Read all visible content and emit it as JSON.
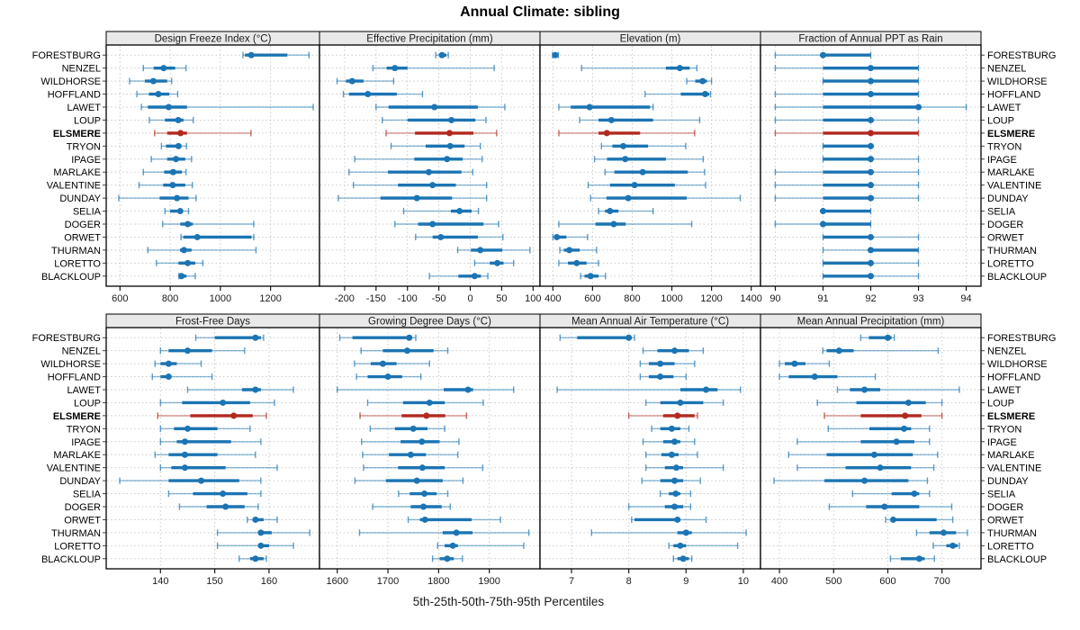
{
  "title": "Annual Climate: sibling",
  "caption": "5th-25th-50th-75th-95th Percentiles",
  "percentile_labels": [
    "5th",
    "25th",
    "50th",
    "75th",
    "95th"
  ],
  "stations": [
    "FORESTBURG",
    "NENZEL",
    "WILDHORSE",
    "HOFFLAND",
    "LAWET",
    "LOUP",
    "ELSMERE",
    "TRYON",
    "IPAGE",
    "MARLAKE",
    "VALENTINE",
    "DUNDAY",
    "SELIA",
    "DOGER",
    "ORWET",
    "THURMAN",
    "LORETTO",
    "BLACKLOUP"
  ],
  "highlight_station": "ELSMERE",
  "colors": {
    "series": "#1b74b3",
    "highlight": "#b3281f",
    "grid": "#c9c9c9",
    "panel_header_bg": "#e9e9e9",
    "border": "#000000",
    "text": "#1a1a1a"
  },
  "chart_data": [
    {
      "type": "segplot",
      "title": "Design Freeze Index (°C)",
      "row": 0,
      "xlim": [
        545,
        1395
      ],
      "ticks": [
        600,
        800,
        1000,
        1200
      ],
      "values": {
        "FORESTBURG": [
          1090,
          1098,
          1123,
          1267,
          1353
        ],
        "NENZEL": [
          693,
          734,
          774,
          820,
          863
        ],
        "WILDHORSE": [
          638,
          699,
          733,
          788,
          806
        ],
        "HOFFLAND": [
          667,
          715,
          753,
          796,
          830
        ],
        "LAWET": [
          685,
          711,
          794,
          867,
          1370
        ],
        "LOUP": [
          717,
          779,
          832,
          853,
          892
        ],
        "ELSMERE": [
          738,
          788,
          841,
          867,
          1122
        ],
        "TRYON": [
          765,
          783,
          833,
          845,
          865
        ],
        "IPAGE": [
          725,
          788,
          823,
          860,
          885
        ],
        "MARLAKE": [
          693,
          776,
          812,
          847,
          863
        ],
        "VALENTINE": [
          676,
          772,
          810,
          860,
          888
        ],
        "DUNDAY": [
          595,
          758,
          827,
          873,
          903
        ],
        "SELIA": [
          779,
          800,
          840,
          850,
          873
        ],
        "DOGER": [
          770,
          840,
          870,
          890,
          1133
        ],
        "ORWET": [
          843,
          852,
          908,
          1124,
          1133
        ],
        "THURMAN": [
          711,
          839,
          855,
          885,
          1142
        ],
        "LORETTO": [
          745,
          833,
          870,
          900,
          930
        ],
        "BLACKLOUP": [
          835,
          838,
          845,
          865,
          900
        ]
      }
    },
    {
      "type": "segplot",
      "title": "Effective Precipitation (mm)",
      "row": 0,
      "xlim": [
        -240,
        111
      ],
      "ticks": [
        -200,
        -150,
        -100,
        -50,
        0,
        50,
        100
      ],
      "values": {
        "FORESTBURG": [
          -55,
          -50,
          -45,
          -38,
          -35
        ],
        "NENZEL": [
          -155,
          -133,
          -120,
          -100,
          38
        ],
        "WILDHORSE": [
          -212,
          -198,
          -188,
          -170,
          -122
        ],
        "HOFFLAND": [
          -202,
          -193,
          -163,
          -117,
          -76
        ],
        "LAWET": [
          -150,
          -130,
          -57,
          12,
          55
        ],
        "LOUP": [
          -140,
          -100,
          -30,
          8,
          25
        ],
        "ELSMERE": [
          -134,
          -88,
          -33,
          5,
          42
        ],
        "TRYON": [
          -126,
          -71,
          -32,
          -9,
          16
        ],
        "IPAGE": [
          -184,
          -89,
          -37,
          -12,
          19
        ],
        "MARLAKE": [
          -193,
          -131,
          -66,
          -14,
          4
        ],
        "VALENTINE": [
          -186,
          -115,
          -60,
          -23,
          26
        ],
        "DUNDAY": [
          -210,
          -143,
          -85,
          -29,
          26
        ],
        "SELIA": [
          -106,
          -31,
          -17,
          2,
          13
        ],
        "DOGER": [
          -120,
          -83,
          -60,
          21,
          45
        ],
        "ORWET": [
          -87,
          -60,
          -47,
          12,
          52
        ],
        "THURMAN": [
          -20,
          1,
          16,
          51,
          95
        ],
        "LORETTO": [
          7,
          31,
          43,
          53,
          69
        ],
        "BLACKLOUP": [
          -65,
          -19,
          7,
          17,
          28
        ]
      }
    },
    {
      "type": "segplot",
      "title": "Elevation (m)",
      "row": 0,
      "xlim": [
        335,
        1447
      ],
      "ticks": [
        400,
        600,
        800,
        1000,
        1200,
        1400
      ],
      "values": {
        "FORESTBURG": [
          398,
          404,
          412,
          420,
          428
        ],
        "NENZEL": [
          545,
          970,
          1040,
          1090,
          1126
        ],
        "WILDHORSE": [
          1075,
          1118,
          1155,
          1177,
          1200
        ],
        "HOFFLAND": [
          865,
          1045,
          1168,
          1188,
          1195
        ],
        "LAWET": [
          430,
          490,
          585,
          890,
          905
        ],
        "LOUP": [
          535,
          630,
          695,
          905,
          1140
        ],
        "ELSMERE": [
          430,
          630,
          672,
          840,
          1115
        ],
        "TRYON": [
          645,
          700,
          755,
          880,
          1070
        ],
        "IPAGE": [
          610,
          673,
          765,
          970,
          1158
        ],
        "MARLAKE": [
          663,
          710,
          853,
          1080,
          1165
        ],
        "VALENTINE": [
          578,
          688,
          812,
          1015,
          1170
        ],
        "DUNDAY": [
          590,
          670,
          780,
          1075,
          1345
        ],
        "SELIA": [
          630,
          663,
          688,
          730,
          905
        ],
        "DOGER": [
          430,
          615,
          707,
          767,
          1100
        ],
        "ORWET": [
          400,
          406,
          420,
          468,
          575
        ],
        "THURMAN": [
          435,
          455,
          483,
          535,
          620
        ],
        "LORETTO": [
          430,
          476,
          520,
          570,
          630
        ],
        "BLACKLOUP": [
          540,
          560,
          590,
          630,
          665
        ]
      }
    },
    {
      "type": "segplot",
      "title": "Fraction of Annual PPT as Rain",
      "row": 0,
      "xlim": [
        89.69,
        94.31
      ],
      "ticks": [
        90,
        91,
        92,
        93,
        94
      ],
      "values": {
        "FORESTBURG": [
          90,
          91,
          91,
          92,
          92
        ],
        "NENZEL": [
          90,
          91,
          92,
          93,
          93
        ],
        "WILDHORSE": [
          91,
          91,
          92,
          93,
          93
        ],
        "HOFFLAND": [
          90,
          91,
          92,
          93,
          93
        ],
        "LAWET": [
          90,
          91,
          93,
          93,
          94
        ],
        "LOUP": [
          90,
          91,
          92,
          92,
          93
        ],
        "ELSMERE": [
          90,
          91,
          92,
          93,
          93
        ],
        "TRYON": [
          91,
          91,
          92,
          92,
          92
        ],
        "IPAGE": [
          91,
          91,
          92,
          92,
          93
        ],
        "MARLAKE": [
          90,
          91,
          92,
          92,
          93
        ],
        "VALENTINE": [
          90,
          91,
          92,
          92,
          93
        ],
        "DUNDAY": [
          90,
          91,
          92,
          92,
          93
        ],
        "SELIA": [
          91,
          91,
          91,
          92,
          92
        ],
        "DOGER": [
          90,
          91,
          91,
          92,
          92
        ],
        "ORWET": [
          91,
          91,
          92,
          92,
          93
        ],
        "THURMAN": [
          91,
          92,
          92,
          93,
          93
        ],
        "LORETTO": [
          91,
          91,
          92,
          92,
          93
        ],
        "BLACKLOUP": [
          91,
          91,
          92,
          92,
          93
        ]
      }
    },
    {
      "type": "segplot",
      "title": "Frost-Free Days",
      "row": 1,
      "xlim": [
        130,
        169.3
      ],
      "ticks": [
        140,
        150,
        160
      ],
      "values": {
        "FORESTBURG": [
          146.5,
          150,
          157.5,
          158.5,
          159
        ],
        "NENZEL": [
          140,
          141.5,
          145,
          149.5,
          155.5
        ],
        "WILDHORSE": [
          139,
          140,
          141.5,
          143,
          147.5
        ],
        "HOFFLAND": [
          138.5,
          140,
          141.5,
          142,
          149.5
        ],
        "LAWET": [
          145,
          155,
          157.5,
          158.5,
          164.5
        ],
        "LOUP": [
          140,
          144,
          151.5,
          156.5,
          161
        ],
        "ELSMERE": [
          139.5,
          145.5,
          153.5,
          157,
          159.5
        ],
        "TRYON": [
          140,
          142.5,
          145,
          150.5,
          156.5
        ],
        "IPAGE": [
          140,
          143,
          144.5,
          153,
          158.5
        ],
        "MARLAKE": [
          139,
          141.5,
          144.5,
          150.5,
          157.5
        ],
        "VALENTINE": [
          140,
          142,
          144.5,
          152,
          161.5
        ],
        "DUNDAY": [
          132.5,
          141.5,
          147.5,
          154.5,
          158.5
        ],
        "SELIA": [
          141.5,
          146,
          151.5,
          156,
          158.5
        ],
        "DOGER": [
          143.5,
          148.5,
          152,
          155.5,
          158
        ],
        "ORWET": [
          156,
          157,
          157.5,
          159,
          161.5
        ],
        "THURMAN": [
          150.5,
          158,
          158.5,
          160.5,
          167.5
        ],
        "LORETTO": [
          150.5,
          158,
          158.5,
          160,
          164.5
        ],
        "BLACKLOUP": [
          154.5,
          156.5,
          157.5,
          159,
          159.5
        ]
      }
    },
    {
      "type": "segplot",
      "title": "Growing Degree Days (°C)",
      "row": 1,
      "xlim": [
        1565,
        2000
      ],
      "ticks": [
        1600,
        1700,
        1800,
        1900
      ],
      "values": {
        "FORESTBURG": [
          1605,
          1630,
          1742,
          1748,
          1755
        ],
        "NENZEL": [
          1647,
          1690,
          1738,
          1790,
          1818
        ],
        "WILDHORSE": [
          1634,
          1666,
          1690,
          1717,
          1782
        ],
        "HOFFLAND": [
          1638,
          1660,
          1700,
          1728,
          1765
        ],
        "LAWET": [
          1600,
          1810,
          1858,
          1868,
          1948
        ],
        "LOUP": [
          1660,
          1730,
          1782,
          1812,
          1888
        ],
        "ELSMERE": [
          1645,
          1727,
          1776,
          1813,
          1855
        ],
        "TRYON": [
          1665,
          1714,
          1750,
          1778,
          1812
        ],
        "IPAGE": [
          1648,
          1725,
          1767,
          1802,
          1840
        ],
        "MARLAKE": [
          1650,
          1702,
          1745,
          1775,
          1838
        ],
        "VALENTINE": [
          1652,
          1720,
          1768,
          1812,
          1887
        ],
        "DUNDAY": [
          1635,
          1696,
          1757,
          1808,
          1848
        ],
        "SELIA": [
          1721,
          1743,
          1772,
          1796,
          1818
        ],
        "DOGER": [
          1670,
          1745,
          1770,
          1806,
          1823
        ],
        "ORWET": [
          1740,
          1763,
          1773,
          1865,
          1922
        ],
        "THURMAN": [
          1644,
          1808,
          1835,
          1867,
          1978
        ],
        "LORETTO": [
          1798,
          1812,
          1828,
          1838,
          1968
        ],
        "BLACKLOUP": [
          1788,
          1802,
          1817,
          1830,
          1847
        ]
      }
    },
    {
      "type": "segplot",
      "title": "Mean Annual Air Temperature (°C)",
      "row": 1,
      "xlim": [
        6.45,
        10.3
      ],
      "ticks": [
        7,
        8,
        9,
        10
      ],
      "values": {
        "FORESTBURG": [
          6.8,
          7.1,
          8.0,
          8.05,
          8.1
        ],
        "NENZEL": [
          8.25,
          8.5,
          8.8,
          9.05,
          9.3
        ],
        "WILDHORSE": [
          8.2,
          8.35,
          8.55,
          8.8,
          9.15
        ],
        "HOFFLAND": [
          8.2,
          8.35,
          8.55,
          8.78,
          9.0
        ],
        "LAWET": [
          6.75,
          8.9,
          9.35,
          9.55,
          9.95
        ],
        "LOUP": [
          8.3,
          8.55,
          8.9,
          9.3,
          9.65
        ],
        "ELSMERE": [
          8.0,
          8.6,
          8.85,
          9.15,
          9.2
        ],
        "TRYON": [
          8.4,
          8.55,
          8.75,
          8.9,
          9.05
        ],
        "IPAGE": [
          8.25,
          8.6,
          8.8,
          8.9,
          9.15
        ],
        "MARLAKE": [
          8.3,
          8.57,
          8.75,
          8.87,
          9.2
        ],
        "VALENTINE": [
          8.3,
          8.63,
          8.83,
          8.95,
          9.65
        ],
        "DUNDAY": [
          8.23,
          8.55,
          8.8,
          8.95,
          9.25
        ],
        "SELIA": [
          8.55,
          8.7,
          8.82,
          8.9,
          9.08
        ],
        "DOGER": [
          8.0,
          8.63,
          8.8,
          8.95,
          9.08
        ],
        "ORWET": [
          8.05,
          8.1,
          8.85,
          8.9,
          9.35
        ],
        "THURMAN": [
          7.35,
          8.85,
          9.0,
          9.1,
          10.05
        ],
        "LORETTO": [
          8.7,
          8.78,
          8.9,
          9.0,
          9.9
        ],
        "BLACKLOUP": [
          8.78,
          8.85,
          8.95,
          9.05,
          9.1
        ]
      }
    },
    {
      "type": "segplot",
      "title": "Mean Annual Precipitation (mm)",
      "row": 1,
      "xlim": [
        365,
        772
      ],
      "ticks": [
        400,
        500,
        600,
        700
      ],
      "values": {
        "FORESTBURG": [
          550,
          565,
          600,
          607,
          612
        ],
        "NENZEL": [
          480,
          487,
          510,
          537,
          693
        ],
        "WILDHORSE": [
          400,
          410,
          428,
          448,
          492
        ],
        "HOFFLAND": [
          400,
          417,
          465,
          507,
          577
        ],
        "LAWET": [
          507,
          530,
          557,
          586,
          732
        ],
        "LOUP": [
          470,
          542,
          638,
          670,
          700
        ],
        "ELSMERE": [
          483,
          550,
          632,
          662,
          700
        ],
        "TRYON": [
          490,
          566,
          630,
          643,
          677
        ],
        "IPAGE": [
          433,
          550,
          616,
          649,
          677
        ],
        "MARLAKE": [
          417,
          487,
          575,
          646,
          692
        ],
        "VALENTINE": [
          433,
          522,
          586,
          643,
          685
        ],
        "DUNDAY": [
          390,
          483,
          557,
          638,
          673
        ],
        "SELIA": [
          535,
          607,
          649,
          658,
          677
        ],
        "DOGER": [
          492,
          560,
          594,
          658,
          718
        ],
        "ORWET": [
          596,
          605,
          610,
          690,
          720
        ],
        "THURMAN": [
          653,
          677,
          703,
          726,
          747
        ],
        "LORETTO": [
          684,
          708,
          720,
          729,
          732
        ],
        "BLACKLOUP": [
          605,
          624,
          658,
          668,
          686
        ]
      }
    }
  ]
}
